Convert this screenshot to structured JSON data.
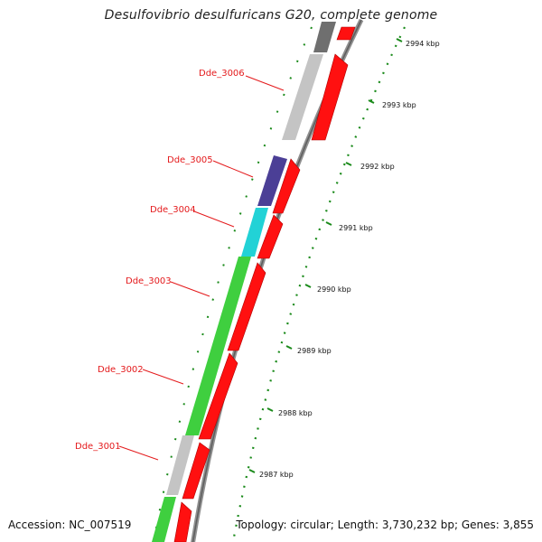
{
  "title": "Desulfovibrio desulfuricans G20, complete genome",
  "footer": {
    "accession": "Accession: NC_007519",
    "summary": "Topology: circular; Length: 3,730,232 bp; Genes: 3,855"
  },
  "colors": {
    "label": "#e41a1c",
    "forward_strand": "#ff0000",
    "backbone": "#808080",
    "ruler": "#1a8a1a",
    "gray_gene": "#c0c0c0",
    "dark_gene": "#707070",
    "purple_gene": "#4a3f96",
    "cyan_gene": "#1fd3d8",
    "green_gene": "#3dd13d"
  },
  "genes_labeled": [
    {
      "id": "Dde_3006"
    },
    {
      "id": "Dde_3005"
    },
    {
      "id": "Dde_3004"
    },
    {
      "id": "Dde_3003"
    },
    {
      "id": "Dde_3002"
    },
    {
      "id": "Dde_3001"
    }
  ],
  "ruler_ticks": [
    "2994 kbp",
    "2993 kbp",
    "2992 kbp",
    "2991 kbp",
    "2990 kbp",
    "2989 kbp",
    "2988 kbp",
    "2987 kbp"
  ]
}
